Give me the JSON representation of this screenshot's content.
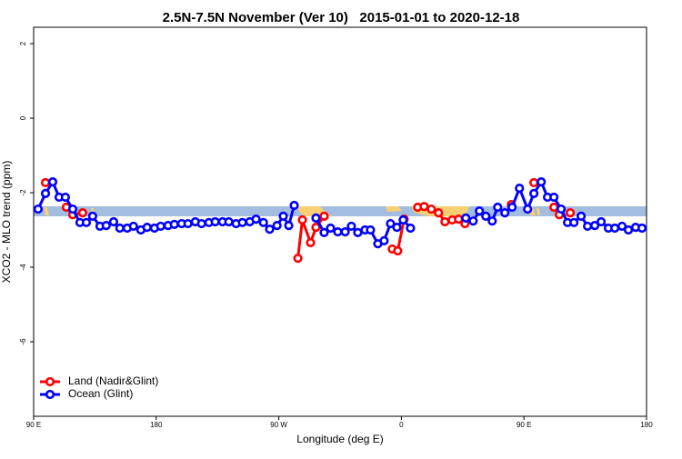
{
  "chart_data": {
    "type": "line",
    "title": "2.5N-7.5N November (Ver 10)   2015-01-01 to 2020-12-18",
    "x_label": "Longitude (deg E)",
    "y_label": "XCO2 - MLO trend (ppm)",
    "xlim": [
      90,
      540
    ],
    "ylim": [
      -8,
      2.44
    ],
    "xticks": [
      {
        "value": 90,
        "label": "90 E"
      },
      {
        "value": 180,
        "label": "180"
      },
      {
        "value": 270,
        "label": "90 W"
      },
      {
        "value": 360,
        "label": "0"
      },
      {
        "value": 450,
        "label": "90 E"
      },
      {
        "value": 540,
        "label": "180"
      }
    ],
    "yticks": [
      -6,
      -4,
      -2,
      0,
      2
    ],
    "legend": "bottom-left",
    "series": [
      {
        "name": "Land (Nadir&Glint)",
        "color": "#ff0000",
        "x": [
          98.7,
          null,
          114,
          118.7,
          126,
          null,
          284,
          287.3,
          293.3,
          297.3,
          303.3,
          null,
          353.3,
          357.3,
          362,
          null,
          372,
          376.7,
          382,
          387.3,
          392,
          397.3,
          402,
          406.7,
          null,
          440.7,
          null,
          457.3,
          null,
          472,
          476,
          null,
          484
        ],
        "values": [
          -1.73,
          null,
          -2.39,
          -2.59,
          -2.54,
          null,
          -3.76,
          -2.73,
          -3.34,
          -2.93,
          -2.63,
          null,
          -3.51,
          -3.56,
          -2.71,
          null,
          -2.39,
          -2.37,
          -2.44,
          -2.54,
          -2.78,
          -2.73,
          -2.71,
          -2.83,
          null,
          -2.32,
          null,
          -1.73,
          null,
          -2.39,
          -2.59,
          null,
          -2.54
        ]
      },
      {
        "name": "Ocean (Glint)",
        "color": "#0000ff",
        "x": [
          93.3,
          98.7,
          104,
          108.7,
          113.3,
          118.7,
          124,
          128.7,
          133.3,
          138.7,
          143.3,
          148.7,
          153.3,
          158.7,
          163.3,
          168.7,
          173.3,
          178.7,
          183.3,
          188.7,
          193.3,
          198.7,
          203.3,
          208.7,
          213.3,
          218.7,
          223.3,
          228.7,
          233.3,
          238.7,
          243.3,
          248.7,
          253.3,
          258.7,
          263.3,
          268.7,
          273.3,
          277.3,
          281.3,
          null,
          297.3,
          303.3,
          308,
          313.3,
          318.7,
          323.3,
          328,
          333.3,
          337.3,
          342.7,
          347.3,
          352,
          356.7,
          361.3,
          366.7,
          null,
          407.3,
          412.7,
          417.3,
          422,
          426.7,
          430.7,
          436,
          441.3,
          446.7,
          452.7,
          457.3,
          462.7,
          467.3,
          472,
          477.3,
          482,
          486.7,
          492,
          496.7,
          502,
          506.7,
          512,
          516.7,
          522,
          526.7,
          532,
          536.7
        ],
        "values": [
          -2.44,
          -2.02,
          -1.71,
          -2.12,
          -2.12,
          -2.44,
          -2.8,
          -2.8,
          -2.63,
          -2.9,
          -2.88,
          -2.78,
          -2.95,
          -2.95,
          -2.9,
          -3.0,
          -2.93,
          -2.95,
          -2.9,
          -2.88,
          -2.85,
          -2.83,
          -2.83,
          -2.78,
          -2.83,
          -2.8,
          -2.78,
          -2.78,
          -2.78,
          -2.83,
          -2.8,
          -2.78,
          -2.71,
          -2.8,
          -2.98,
          -2.88,
          -2.63,
          -2.88,
          -2.34,
          null,
          -2.68,
          -3.07,
          -2.95,
          -3.05,
          -3.05,
          -2.9,
          -3.07,
          -3.0,
          -3.0,
          -3.37,
          -3.29,
          -2.83,
          -2.93,
          -2.73,
          -2.95,
          null,
          -2.68,
          -2.76,
          -2.49,
          -2.63,
          -2.76,
          -2.39,
          -2.54,
          -2.39,
          -1.88,
          -2.44,
          -2.02,
          -1.71,
          -2.12,
          -2.12,
          -2.44,
          -2.8,
          -2.8,
          -2.63,
          -2.9,
          -2.88,
          -2.78,
          -2.95,
          -2.95,
          -2.9,
          -3.0,
          -2.93,
          -2.95
        ]
      }
    ]
  }
}
